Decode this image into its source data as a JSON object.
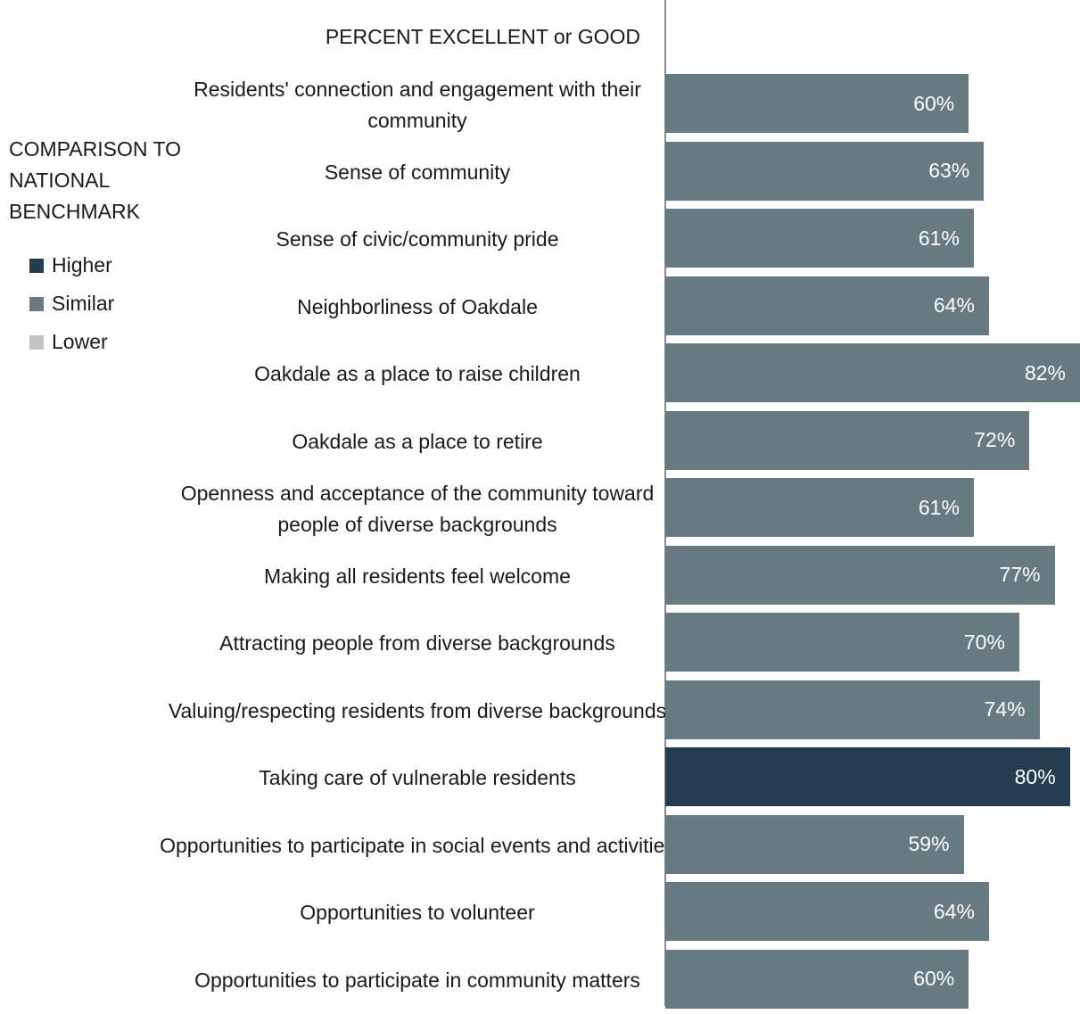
{
  "colors": {
    "higher": "#243e4f",
    "similar": "#687a81",
    "lower": "#bdc3c6",
    "axis": "#8c8c8c"
  },
  "header": {
    "title": "PERCENT EXCELLENT or GOOD"
  },
  "legend": {
    "title": "COMPARISON TO NATIONAL BENCHMARK",
    "items": [
      {
        "label": "Higher",
        "key": "higher"
      },
      {
        "label": "Similar",
        "key": "similar"
      },
      {
        "label": "Lower",
        "key": "lower"
      }
    ]
  },
  "chart_data": {
    "type": "bar",
    "orientation": "horizontal",
    "title": "PERCENT EXCELLENT or GOOD",
    "categories": [
      "Residents' connection and engagement with their community",
      "Sense of community",
      "Sense of civic/community pride",
      "Neighborliness of Oakdale",
      "Oakdale as a place to raise children",
      "Oakdale as a place to retire",
      "Openness and acceptance of the community toward people of diverse backgrounds",
      "Making all residents feel welcome",
      "Attracting people from diverse backgrounds",
      "Valuing/respecting residents from diverse backgrounds",
      "Taking care of vulnerable residents",
      "Opportunities to participate in social events and activities",
      "Opportunities to volunteer",
      "Opportunities to participate in community matters"
    ],
    "values": [
      60,
      63,
      61,
      64,
      82,
      72,
      61,
      77,
      70,
      74,
      80,
      59,
      64,
      60
    ],
    "value_labels": [
      "60%",
      "63%",
      "61%",
      "64%",
      "82%",
      "72%",
      "61%",
      "77%",
      "70%",
      "74%",
      "80%",
      "59%",
      "64%",
      "60%"
    ],
    "comparison": [
      "similar",
      "similar",
      "similar",
      "similar",
      "similar",
      "similar",
      "similar",
      "similar",
      "similar",
      "similar",
      "higher",
      "similar",
      "similar",
      "similar"
    ],
    "xlim": [
      0,
      82
    ],
    "legend": "left"
  }
}
